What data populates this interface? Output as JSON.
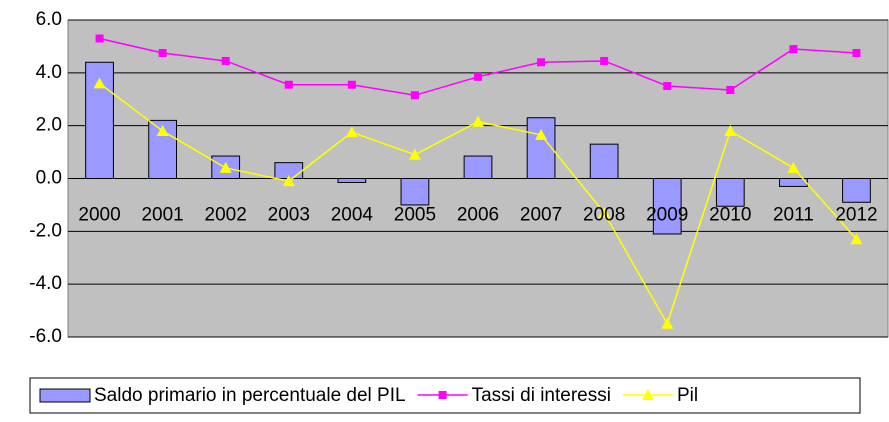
{
  "chart_data": {
    "type": "bar",
    "categories": [
      "2000",
      "2001",
      "2002",
      "2003",
      "2004",
      "2005",
      "2006",
      "2007",
      "2008",
      "2009",
      "2010",
      "2011",
      "2012"
    ],
    "series": [
      {
        "name": "Saldo primario in percentuale del PIL",
        "type": "bar",
        "color": "#9999ff",
        "values": [
          4.4,
          2.2,
          0.85,
          0.6,
          -0.15,
          -1.0,
          0.85,
          2.3,
          1.3,
          -2.1,
          -1.05,
          -0.3,
          -0.9
        ]
      },
      {
        "name": "Tassi di interessi",
        "type": "line",
        "marker": "square",
        "color": "#ff00ff",
        "values": [
          5.3,
          4.75,
          4.45,
          3.55,
          3.55,
          3.15,
          3.85,
          4.4,
          4.45,
          3.5,
          3.35,
          4.9,
          4.75
        ]
      },
      {
        "name": "Pil",
        "type": "line",
        "marker": "triangle",
        "color": "#ffff00",
        "values": [
          3.6,
          1.8,
          0.4,
          -0.1,
          1.75,
          0.9,
          2.15,
          1.65,
          -1.3,
          -5.5,
          1.8,
          0.4,
          -2.3
        ]
      }
    ],
    "ylim": [
      -6,
      6
    ],
    "yticks": [
      {
        "value": -6,
        "label": "-6.0"
      },
      {
        "value": -4,
        "label": "-4.0"
      },
      {
        "value": -2,
        "label": "-2.0"
      },
      {
        "value": 0,
        "label": "0.0"
      },
      {
        "value": 2,
        "label": "2.0"
      },
      {
        "value": 4,
        "label": "4.0"
      },
      {
        "value": 6,
        "label": "6.0"
      }
    ],
    "grid": true,
    "legend": "bottom",
    "plot_background": "#c0c0c0"
  }
}
